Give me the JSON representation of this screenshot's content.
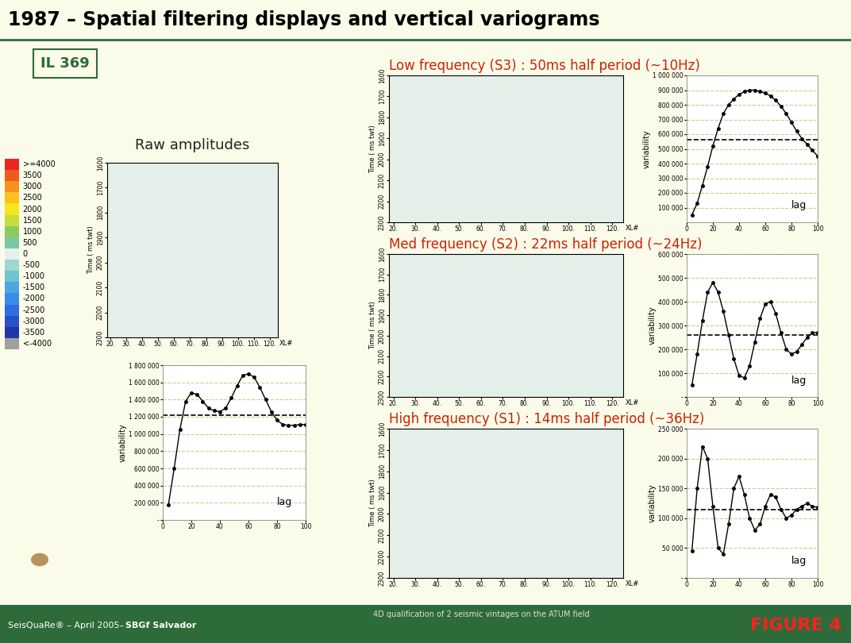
{
  "slide": {
    "title": "1987 – Spatial filtering displays and vertical variograms",
    "inline_label": "IL 369",
    "footer_left": "SeisQuaRe® – April 2005– ",
    "footer_left_bold": "SBGf Salvador",
    "footer_center": "4D qualification of 2 seismic vintages on the ATUM field",
    "footer_right": "FIGURE 4"
  },
  "chart_data": [
    {
      "type": "image",
      "title": "Raw amplitudes",
      "xlabel": "XL#",
      "ylabel": "Time ( ms twt)",
      "xlim": [
        18,
        125
      ],
      "ylim": [
        2300,
        1600
      ],
      "xticks": [
        {
          "value": 20,
          "label": "20."
        },
        {
          "value": 30,
          "label": "30."
        },
        {
          "value": 40,
          "label": "40."
        },
        {
          "value": 50,
          "label": "50."
        },
        {
          "value": 60,
          "label": "60."
        },
        {
          "value": 70,
          "label": "70."
        },
        {
          "value": 80,
          "label": "80."
        },
        {
          "value": 90,
          "label": "90."
        },
        {
          "value": 100,
          "label": "100."
        },
        {
          "value": 110,
          "label": "110."
        },
        {
          "value": 120,
          "label": "120."
        }
      ],
      "yticks": [
        1600,
        1700,
        1800,
        1900,
        2000,
        2100,
        2200,
        2300
      ],
      "color_scale": {
        "labels": [
          ">=4000",
          "3500",
          "3000",
          "2500",
          "2000",
          "1500",
          "1000",
          "500",
          "0",
          "-500",
          "-1000",
          "-1500",
          "-2000",
          "-2500",
          "-3000",
          "-3500",
          "<-4000"
        ],
        "colors": [
          "#e8281e",
          "#f05a1e",
          "#f7901e",
          "#fbc01e",
          "#f5e61e",
          "#c8dc3c",
          "#8cc864",
          "#7cc8a0",
          "#e6f0ea",
          "#9fd6d0",
          "#6ec3d0",
          "#4aa8e0",
          "#3a8ce6",
          "#2e6ee0",
          "#2850c8",
          "#2036a8",
          "#a0a0a0"
        ]
      }
    },
    {
      "type": "line",
      "ylabel": "variability",
      "annotation": "lag",
      "grid": true,
      "marker": "o",
      "line_style": "solid",
      "color": "#000000",
      "x": [
        4,
        8,
        12,
        16,
        20,
        24,
        28,
        32,
        36,
        40,
        44,
        48,
        52,
        56,
        60,
        64,
        68,
        72,
        76,
        80,
        84,
        88,
        92,
        96,
        100
      ],
      "values": [
        180000,
        600000,
        1050000,
        1380000,
        1480000,
        1460000,
        1380000,
        1300000,
        1270000,
        1260000,
        1300000,
        1420000,
        1560000,
        1680000,
        1700000,
        1660000,
        1540000,
        1400000,
        1260000,
        1160000,
        1110000,
        1100000,
        1100000,
        1110000,
        1110000
      ],
      "reference": 1220000,
      "xlim": [
        0,
        100
      ],
      "xticks": [
        0,
        20,
        40,
        60,
        80,
        100
      ],
      "ylim": [
        0,
        1800000
      ],
      "yticks": [
        {
          "value": 0,
          "label": "-"
        },
        {
          "value": 200000,
          "label": "200 000"
        },
        {
          "value": 400000,
          "label": "400 000"
        },
        {
          "value": 600000,
          "label": "600 000"
        },
        {
          "value": 800000,
          "label": "800 000"
        },
        {
          "value": 1000000,
          "label": "1 000 000"
        },
        {
          "value": 1200000,
          "label": "1 200 000"
        },
        {
          "value": 1400000,
          "label": "1 400 000"
        },
        {
          "value": 1600000,
          "label": "1 600 000"
        },
        {
          "value": 1800000,
          "label": "1 800 000"
        }
      ]
    },
    {
      "type": "image",
      "title": "Low frequency (S3) : 50ms half period (~10Hz)",
      "xlabel": "XL#",
      "ylabel": "Time ( ms twt)",
      "xlim": [
        18,
        125
      ],
      "ylim": [
        2300,
        1600
      ],
      "xticks": [
        {
          "value": 20,
          "label": "20."
        },
        {
          "value": 30,
          "label": "30."
        },
        {
          "value": 40,
          "label": "40."
        },
        {
          "value": 50,
          "label": "50."
        },
        {
          "value": 60,
          "label": "60."
        },
        {
          "value": 70,
          "label": "70."
        },
        {
          "value": 80,
          "label": "80."
        },
        {
          "value": 90,
          "label": "90."
        },
        {
          "value": 100,
          "label": "100."
        },
        {
          "value": 110,
          "label": "110."
        },
        {
          "value": 120,
          "label": "120."
        }
      ],
      "yticks": [
        1600,
        1700,
        1800,
        1900,
        2000,
        2100,
        2200,
        2300
      ]
    },
    {
      "type": "line",
      "ylabel": "variability",
      "annotation": "lag",
      "grid": true,
      "marker": "o",
      "line_style": "solid",
      "color": "#000000",
      "x": [
        4,
        8,
        12,
        16,
        20,
        24,
        28,
        32,
        36,
        40,
        44,
        48,
        52,
        56,
        60,
        64,
        68,
        72,
        76,
        80,
        84,
        88,
        92,
        96,
        100
      ],
      "values": [
        50000,
        130000,
        250000,
        380000,
        520000,
        640000,
        740000,
        800000,
        840000,
        870000,
        890000,
        900000,
        900000,
        890000,
        880000,
        860000,
        830000,
        790000,
        740000,
        680000,
        620000,
        570000,
        530000,
        490000,
        450000
      ],
      "reference": 560000,
      "xlim": [
        0,
        100
      ],
      "xticks": [
        0,
        20,
        40,
        60,
        80,
        100
      ],
      "ylim": [
        0,
        1000000
      ],
      "yticks": [
        {
          "value": 100000,
          "label": "100 000"
        },
        {
          "value": 200000,
          "label": "200 000"
        },
        {
          "value": 300000,
          "label": "300 000"
        },
        {
          "value": 400000,
          "label": "400 000"
        },
        {
          "value": 500000,
          "label": "500 000"
        },
        {
          "value": 600000,
          "label": "600 000"
        },
        {
          "value": 700000,
          "label": "700 000"
        },
        {
          "value": 800000,
          "label": "800 000"
        },
        {
          "value": 900000,
          "label": "900 000"
        },
        {
          "value": 1000000,
          "label": "1 000 000"
        }
      ]
    },
    {
      "type": "image",
      "title": "Med frequency (S2) : 22ms half period (~24Hz)",
      "xlabel": "XL#",
      "ylabel": "Time ( ms twt)",
      "xlim": [
        18,
        125
      ],
      "ylim": [
        2300,
        1600
      ],
      "xticks": [
        {
          "value": 20,
          "label": "20."
        },
        {
          "value": 30,
          "label": "30."
        },
        {
          "value": 40,
          "label": "40."
        },
        {
          "value": 50,
          "label": "50."
        },
        {
          "value": 60,
          "label": "60."
        },
        {
          "value": 70,
          "label": "70."
        },
        {
          "value": 80,
          "label": "80."
        },
        {
          "value": 90,
          "label": "90."
        },
        {
          "value": 100,
          "label": "100."
        },
        {
          "value": 110,
          "label": "110."
        },
        {
          "value": 120,
          "label": "120."
        }
      ],
      "yticks": [
        1600,
        1700,
        1800,
        1900,
        2000,
        2100,
        2200,
        2300
      ]
    },
    {
      "type": "line",
      "ylabel": "variability",
      "annotation": "lag",
      "grid": true,
      "marker": "o",
      "line_style": "solid",
      "color": "#000000",
      "x": [
        4,
        8,
        12,
        16,
        20,
        24,
        28,
        32,
        36,
        40,
        44,
        48,
        52,
        56,
        60,
        64,
        68,
        72,
        76,
        80,
        84,
        88,
        92,
        96,
        100
      ],
      "values": [
        50000,
        180000,
        320000,
        440000,
        480000,
        440000,
        360000,
        260000,
        160000,
        90000,
        80000,
        130000,
        230000,
        330000,
        390000,
        400000,
        350000,
        270000,
        200000,
        180000,
        190000,
        220000,
        250000,
        270000,
        270000
      ],
      "reference": 260000,
      "xlim": [
        0,
        100
      ],
      "xticks": [
        0,
        20,
        40,
        60,
        80,
        100
      ],
      "ylim": [
        0,
        600000
      ],
      "yticks": [
        {
          "value": 0,
          "label": "-"
        },
        {
          "value": 100000,
          "label": "100 000"
        },
        {
          "value": 200000,
          "label": "200 000"
        },
        {
          "value": 300000,
          "label": "300 000"
        },
        {
          "value": 400000,
          "label": "400 000"
        },
        {
          "value": 500000,
          "label": "500 000"
        },
        {
          "value": 600000,
          "label": "600 000"
        }
      ]
    },
    {
      "type": "image",
      "title": "High frequency (S1) : 14ms half period (~36Hz)",
      "xlabel": "XL#",
      "ylabel": "Time ( ms twt)",
      "xlim": [
        18,
        125
      ],
      "ylim": [
        2300,
        1600
      ],
      "xticks": [
        {
          "value": 20,
          "label": "20."
        },
        {
          "value": 30,
          "label": "30."
        },
        {
          "value": 40,
          "label": "40."
        },
        {
          "value": 50,
          "label": "50."
        },
        {
          "value": 60,
          "label": "60."
        },
        {
          "value": 70,
          "label": "70."
        },
        {
          "value": 80,
          "label": "80."
        },
        {
          "value": 90,
          "label": "90."
        },
        {
          "value": 100,
          "label": "100."
        },
        {
          "value": 110,
          "label": "110."
        },
        {
          "value": 120,
          "label": "120."
        }
      ],
      "yticks": [
        1600,
        1700,
        1800,
        1900,
        2000,
        2100,
        2200,
        2300
      ]
    },
    {
      "type": "line",
      "ylabel": "variability",
      "annotation": "lag",
      "grid": true,
      "marker": "o",
      "line_style": "solid",
      "color": "#000000",
      "x": [
        4,
        8,
        12,
        16,
        20,
        24,
        28,
        32,
        36,
        40,
        44,
        48,
        52,
        56,
        60,
        64,
        68,
        72,
        76,
        80,
        84,
        88,
        92,
        96,
        100
      ],
      "values": [
        45000,
        150000,
        220000,
        200000,
        120000,
        50000,
        40000,
        90000,
        150000,
        170000,
        140000,
        100000,
        80000,
        90000,
        120000,
        140000,
        135000,
        115000,
        100000,
        105000,
        115000,
        120000,
        125000,
        120000,
        118000
      ],
      "reference": 115000,
      "xlim": [
        0,
        100
      ],
      "xticks": [
        0,
        20,
        40,
        60,
        80,
        100
      ],
      "ylim": [
        0,
        250000
      ],
      "yticks": [
        {
          "value": 0,
          "label": "-"
        },
        {
          "value": 50000,
          "label": "50 000"
        },
        {
          "value": 100000,
          "label": "100 000"
        },
        {
          "value": 150000,
          "label": "150 000"
        },
        {
          "value": 200000,
          "label": "200 000"
        },
        {
          "value": 250000,
          "label": "250 000"
        }
      ]
    }
  ]
}
